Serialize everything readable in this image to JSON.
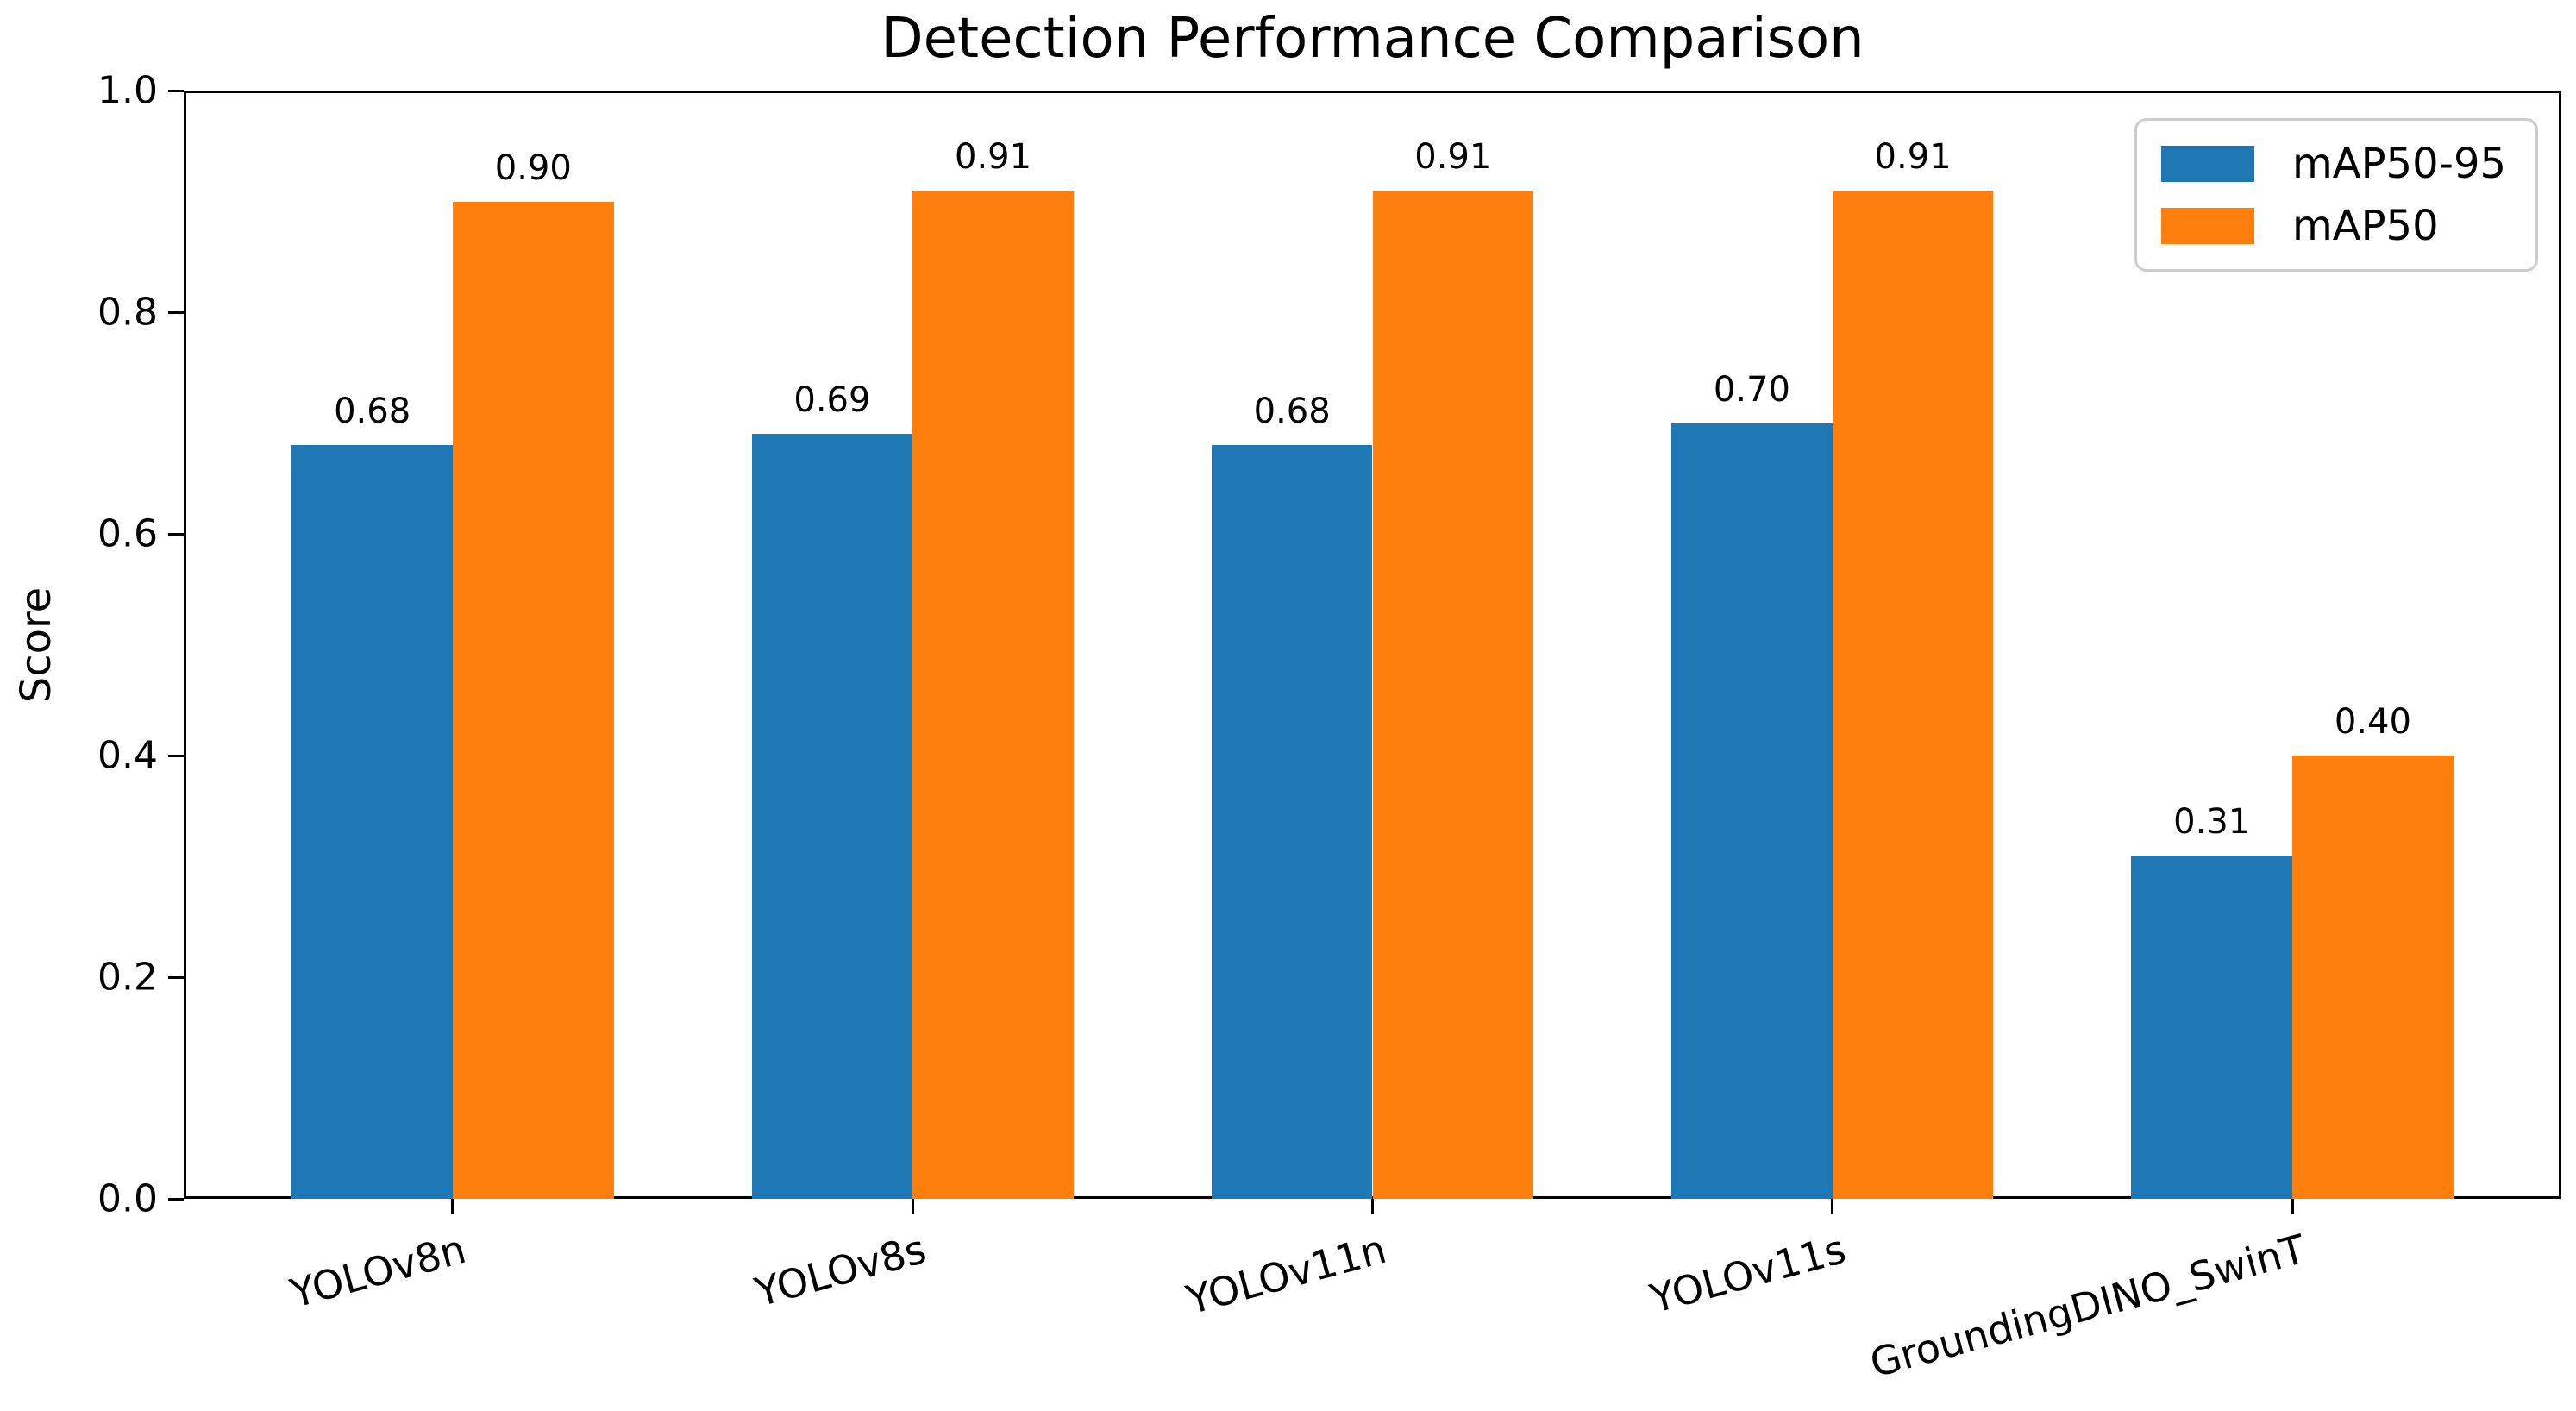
{
  "figure": {
    "title": "Detection Performance Comparison",
    "ylabel": "Score"
  },
  "chart_data": {
    "type": "bar",
    "title": "Detection Performance Comparison",
    "xlabel": "",
    "ylabel": "Score",
    "categories": [
      "YOLOv8n",
      "YOLOv8s",
      "YOLOv11n",
      "YOLOv11s",
      "GroundingDINO_SwinT"
    ],
    "series": [
      {
        "name": "mAP50-95",
        "color": "#1f77b4",
        "values": [
          0.68,
          0.69,
          0.68,
          0.7,
          0.31
        ],
        "labels": [
          "0.68",
          "0.69",
          "0.68",
          "0.70",
          "0.31"
        ]
      },
      {
        "name": "mAP50",
        "color": "#ff7f0e",
        "values": [
          0.9,
          0.91,
          0.91,
          0.91,
          0.4
        ],
        "labels": [
          "0.90",
          "0.91",
          "0.91",
          "0.91",
          "0.40"
        ]
      }
    ],
    "ylim": [
      0.0,
      1.0
    ],
    "yticks": [
      "0.0",
      "0.2",
      "0.4",
      "0.6",
      "0.8",
      "1.0"
    ],
    "ytick_values": [
      0.0,
      0.2,
      0.4,
      0.6,
      0.8,
      1.0
    ],
    "grid": false,
    "legend_position": "upper right",
    "x_tick_rotation_deg": 15,
    "bar_value_labels_shown": true
  },
  "colors": {
    "series_blue": "#1f77b4",
    "series_orange": "#ff7f0e",
    "axis": "#000000",
    "legend_border": "#cccccc",
    "background": "#ffffff",
    "text": "#000000"
  }
}
